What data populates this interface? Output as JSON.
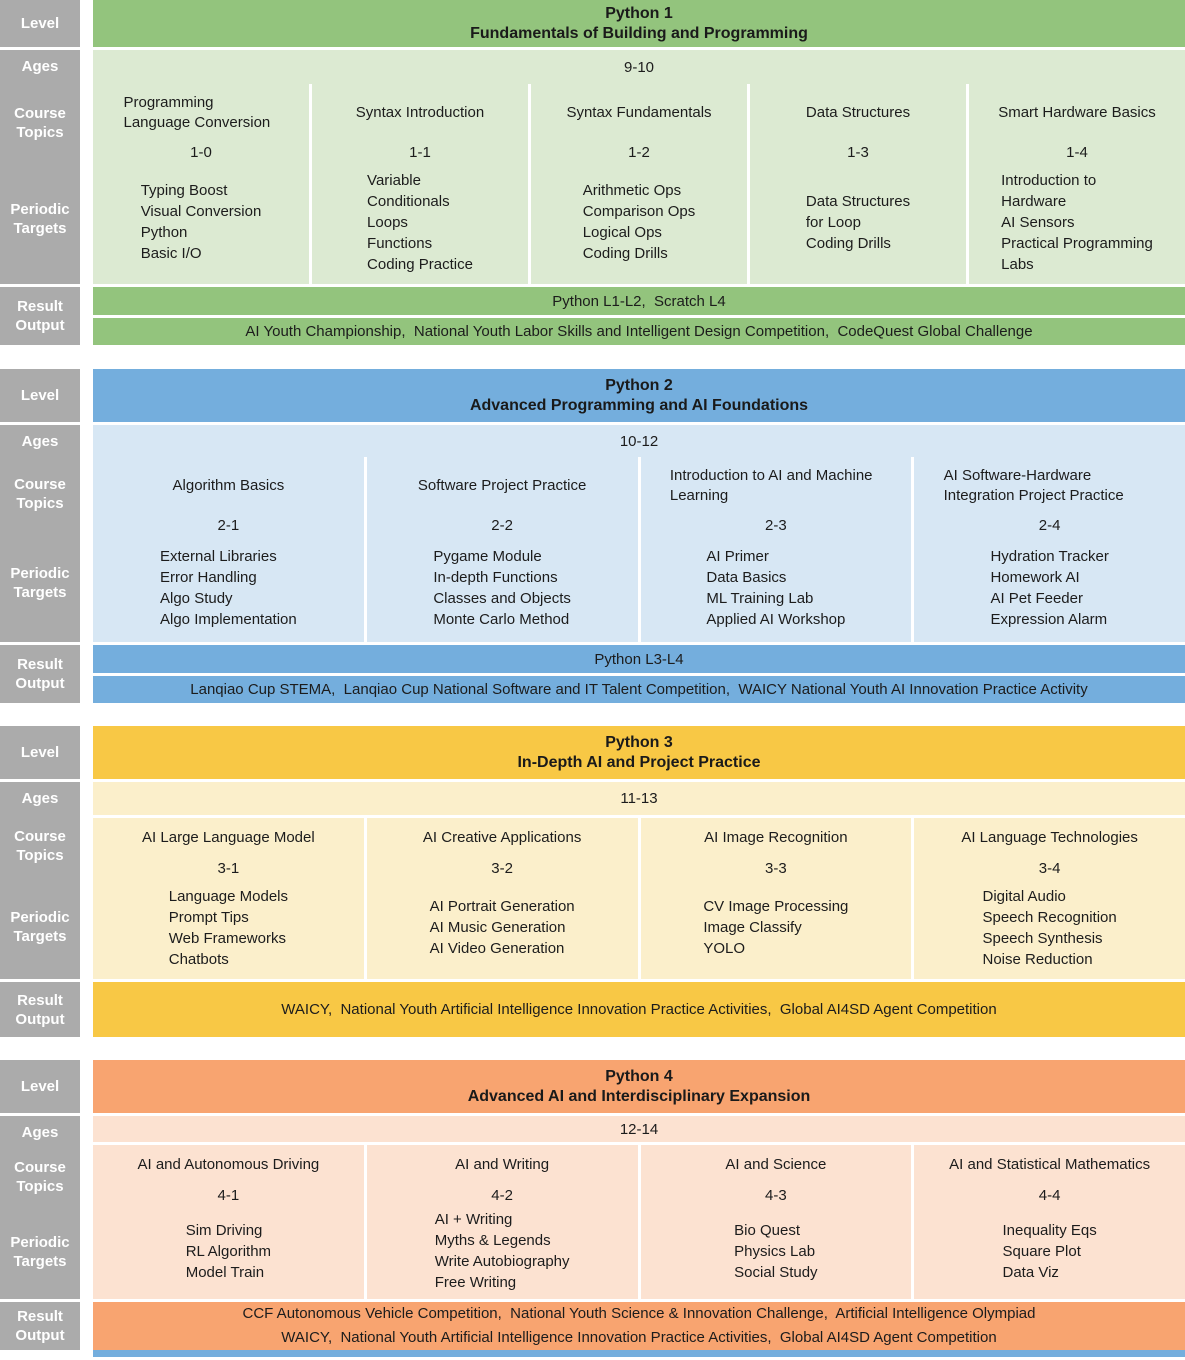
{
  "labels": {
    "level": "Level",
    "ages": "Ages",
    "course_topics": "Course Topics",
    "periodic_targets": "Periodic Targets",
    "result_output": "Result Output"
  },
  "colors": {
    "sidebar_gray": "#ababab",
    "python1_header": "#93c47d",
    "python1_body": "#dcead2",
    "python2_header": "#74aedd",
    "python2_body": "#d7e7f4",
    "python3_header": "#f8c845",
    "python3_body": "#fbefcb",
    "python4_header": "#f8a470",
    "python4_body": "#fce2d1",
    "bottom_strip": "#74aedd"
  },
  "sections": [
    {
      "title": "Python 1",
      "subtitle": "Fundamentals of Building and Programming",
      "ages": "9-10",
      "columns": [
        {
          "topic": "Programming Language Conversion",
          "code": "1-0",
          "targets": [
            "Typing Boost",
            "Visual Conversion",
            "Python",
            "Basic I/O"
          ]
        },
        {
          "topic": "Syntax Introduction",
          "code": "1-1",
          "targets": [
            "Variable",
            "Conditionals",
            "Loops",
            "Functions",
            "Coding Practice"
          ]
        },
        {
          "topic": "Syntax Fundamentals",
          "code": "1-2",
          "targets": [
            "Arithmetic Ops",
            "Comparison Ops",
            "Logical Ops",
            "Coding Drills"
          ]
        },
        {
          "topic": "Data Structures",
          "code": "1-3",
          "targets": [
            "Data Structures",
            "for Loop",
            "Coding Drills"
          ]
        },
        {
          "topic": "Smart Hardware Basics",
          "code": "1-4",
          "targets": [
            "Introduction to",
            "Hardware",
            "AI Sensors",
            "Practical Programming",
            "Labs"
          ]
        }
      ],
      "results": [
        "Python L1-L2,  Scratch L4",
        "AI Youth Championship,  National Youth Labor Skills and Intelligent Design Competition,  CodeQuest Global Challenge"
      ]
    },
    {
      "title": "Python 2",
      "subtitle": "Advanced Programming and AI Foundations",
      "ages": "10-12",
      "columns": [
        {
          "topic": "Algorithm Basics",
          "code": "2-1",
          "targets": [
            "External Libraries",
            "Error Handling",
            "Algo Study",
            "Algo Implementation"
          ]
        },
        {
          "topic": "Software Project Practice",
          "code": "2-2",
          "targets": [
            "Pygame Module",
            "In-depth Functions",
            "Classes and Objects",
            "Monte Carlo Method"
          ]
        },
        {
          "topic": "Introduction to AI and Machine Learning",
          "code": "2-3",
          "targets": [
            "AI Primer",
            "Data Basics",
            "ML Training Lab",
            "Applied AI Workshop"
          ]
        },
        {
          "topic": "AI Software-Hardware Integration Project Practice",
          "code": "2-4",
          "targets": [
            "Hydration Tracker",
            "Homework AI",
            "AI Pet Feeder",
            "Expression Alarm"
          ]
        }
      ],
      "results": [
        "Python L3-L4",
        "Lanqiao Cup STEMA,  Lanqiao Cup National Software and IT Talent Competition,  WAICY National Youth AI Innovation Practice Activity"
      ]
    },
    {
      "title": "Python 3",
      "subtitle": "In-Depth AI and Project Practice",
      "ages": "11-13",
      "columns": [
        {
          "topic": "AI Large Language Model",
          "code": "3-1",
          "targets": [
            "Language Models",
            "Prompt Tips",
            "Web Frameworks",
            "Chatbots"
          ]
        },
        {
          "topic": "AI Creative Applications",
          "code": "3-2",
          "targets": [
            "AI Portrait Generation",
            "AI Music Generation",
            "AI Video Generation"
          ]
        },
        {
          "topic": "AI Image Recognition",
          "code": "3-3",
          "targets": [
            "CV Image Processing",
            "Image Classify",
            "YOLO"
          ]
        },
        {
          "topic": "AI Language Technologies",
          "code": "3-4",
          "targets": [
            "Digital Audio",
            "Speech Recognition",
            "Speech Synthesis",
            "Noise Reduction"
          ]
        }
      ],
      "results": [
        "WAICY,  National Youth Artificial Intelligence Innovation Practice Activities,  Global AI4SD Agent Competition"
      ]
    },
    {
      "title": "Python 4",
      "subtitle": "Advanced AI and Interdisciplinary Expansion",
      "ages": "12-14",
      "columns": [
        {
          "topic": "AI and Autonomous Driving",
          "code": "4-1",
          "targets": [
            "Sim Driving",
            "RL Algorithm",
            "Model Train"
          ]
        },
        {
          "topic": "AI and Writing",
          "code": "4-2",
          "targets": [
            "AI + Writing",
            "Myths & Legends",
            "Write Autobiography",
            "Free Writing"
          ]
        },
        {
          "topic": "AI and Science",
          "code": "4-3",
          "targets": [
            "Bio Quest",
            "Physics Lab",
            "Social Study"
          ]
        },
        {
          "topic": "AI and Statistical Mathematics",
          "code": "4-4",
          "targets": [
            "Inequality Eqs",
            "Square Plot",
            "Data Viz"
          ]
        }
      ],
      "results": [
        "CCF Autonomous Vehicle Competition,  National Youth Science & Innovation Challenge,  Artificial Intelligence Olympiad",
        "WAICY,  National Youth Artificial Intelligence Innovation Practice Activities,  Global AI4SD Agent Competition"
      ]
    }
  ]
}
